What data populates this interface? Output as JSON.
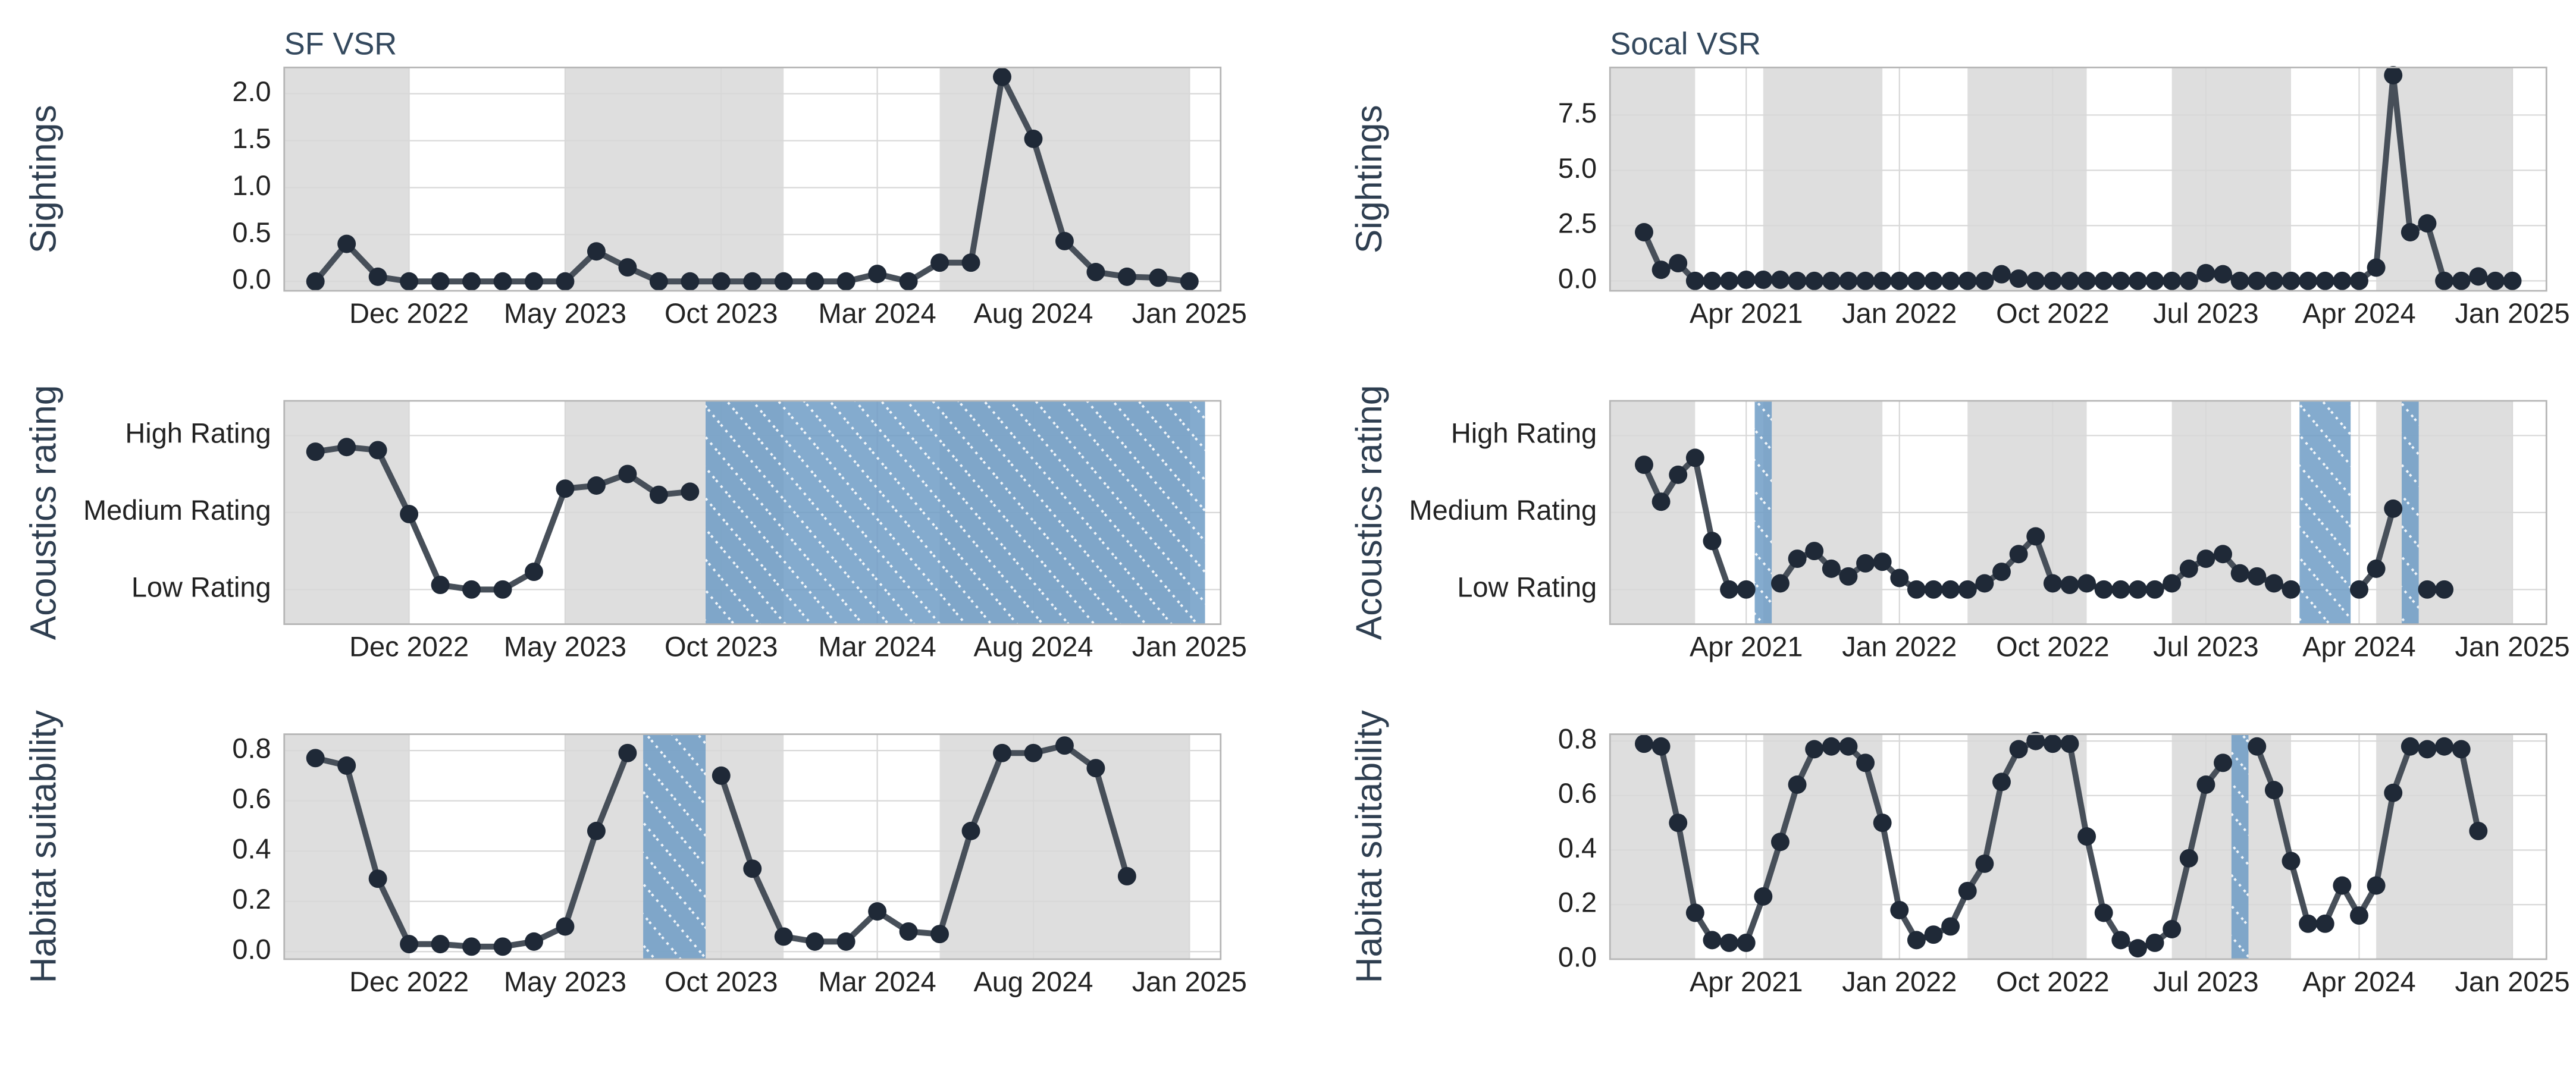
{
  "chart_data": [
    {
      "type": "line",
      "title": "SF VSR",
      "ylabel": "Sightings",
      "x": [
        "2022-09",
        "2022-10",
        "2022-11",
        "2022-12",
        "2023-01",
        "2023-02",
        "2023-03",
        "2023-04",
        "2023-05",
        "2023-06",
        "2023-07",
        "2023-08",
        "2023-09",
        "2023-10",
        "2023-11",
        "2023-12",
        "2024-01",
        "2024-02",
        "2024-03",
        "2024-04",
        "2024-05",
        "2024-06",
        "2024-07",
        "2024-08",
        "2024-09",
        "2024-10",
        "2024-11",
        "2024-12",
        "2025-01"
      ],
      "values": [
        0,
        0.4,
        0.05,
        0,
        0,
        0,
        0,
        0,
        0,
        0.32,
        0.15,
        0,
        0,
        0,
        0,
        0,
        0,
        0,
        0.08,
        0,
        0.2,
        0.2,
        2.18,
        1.52,
        0.43,
        0.1,
        0.05,
        0.04,
        0
      ],
      "color": "#474f59",
      "marker_color": "#1f2937",
      "xlim": [
        "2022-08",
        "2025-02"
      ],
      "xticks": [
        {
          "value": "2022-12",
          "label": "Dec 2022"
        },
        {
          "value": "2023-05",
          "label": "May 2023"
        },
        {
          "value": "2023-10",
          "label": "Oct 2023"
        },
        {
          "value": "2024-03",
          "label": "Mar 2024"
        },
        {
          "value": "2024-08",
          "label": "Aug 2024"
        },
        {
          "value": "2025-01",
          "label": "Jan 2025"
        }
      ],
      "ylim": [
        -0.1,
        2.28
      ],
      "yticks": [
        {
          "value": 0,
          "label": "0.0"
        },
        0.5,
        {
          "value": 1,
          "label": "1.0"
        },
        1.5,
        {
          "value": 2,
          "label": "2.0"
        }
      ],
      "grid": true,
      "shaded_periods": [
        [
          "2022-08",
          "2022-12"
        ],
        [
          "2023-05",
          "2023-12"
        ],
        [
          "2024-05",
          "2025-01"
        ]
      ],
      "shaded_color": "#dedede",
      "missing_periods": [],
      "missing_color": "#6f9cc6"
    },
    {
      "type": "line",
      "ylabel": "Acoustics rating",
      "x": [
        "2022-09",
        "2022-10",
        "2022-11",
        "2022-12",
        "2023-01",
        "2023-02",
        "2023-03",
        "2023-04",
        "2023-05",
        "2023-06",
        "2023-07",
        "2023-08",
        "2023-09"
      ],
      "values": [
        2.79,
        2.85,
        2.81,
        1.98,
        1.06,
        1.0,
        1.0,
        1.23,
        2.31,
        2.35,
        2.5,
        2.23,
        2.27
      ],
      "color": "#474f59",
      "marker_color": "#1f2937",
      "xlim": [
        "2022-08",
        "2025-02"
      ],
      "xticks": [
        {
          "value": "2022-12",
          "label": "Dec 2022"
        },
        {
          "value": "2023-05",
          "label": "May 2023"
        },
        {
          "value": "2023-10",
          "label": "Oct 2023"
        },
        {
          "value": "2024-03",
          "label": "Mar 2024"
        },
        {
          "value": "2024-08",
          "label": "Aug 2024"
        },
        {
          "value": "2025-01",
          "label": "Jan 2025"
        }
      ],
      "ylim": [
        0.55,
        3.45
      ],
      "yticks": [
        {
          "value": 1,
          "label": "Low Rating"
        },
        {
          "value": 2,
          "label": "Medium Rating"
        },
        {
          "value": 3,
          "label": "High Rating"
        }
      ],
      "grid": true,
      "shaded_periods": [
        [
          "2022-08",
          "2022-12"
        ],
        [
          "2023-05",
          "2023-12"
        ],
        [
          "2024-05",
          "2025-01"
        ]
      ],
      "shaded_color": "#dedede",
      "missing_periods": [
        [
          "2023-10",
          "2025-01"
        ]
      ],
      "missing_color": "#6f9cc6"
    },
    {
      "type": "line",
      "ylabel": "Habitat suitability",
      "x": [
        "2022-09",
        "2022-10",
        "2022-11",
        "2022-12",
        "2023-01",
        "2023-02",
        "2023-03",
        "2023-04",
        "2023-05",
        "2023-06",
        "2023-07",
        "2023-08",
        "2023-09",
        "2023-10",
        "2023-11",
        "2023-12",
        "2024-01",
        "2024-02",
        "2024-03",
        "2024-04",
        "2024-05",
        "2024-06",
        "2024-07",
        "2024-08",
        "2024-09",
        "2024-10",
        "2024-11"
      ],
      "values": [
        0.77,
        0.74,
        0.29,
        0.03,
        0.03,
        0.02,
        0.02,
        0.04,
        0.1,
        0.48,
        0.79,
        null,
        null,
        0.7,
        0.33,
        0.06,
        0.04,
        0.04,
        0.16,
        0.08,
        0.07,
        0.48,
        0.79,
        0.79,
        0.82,
        0.73,
        0.3
      ],
      "color": "#474f59",
      "marker_color": "#1f2937",
      "xlim": [
        "2022-08",
        "2025-02"
      ],
      "xticks": [
        {
          "value": "2022-12",
          "label": "Dec 2022"
        },
        {
          "value": "2023-05",
          "label": "May 2023"
        },
        {
          "value": "2023-10",
          "label": "Oct 2023"
        },
        {
          "value": "2024-03",
          "label": "Mar 2024"
        },
        {
          "value": "2024-08",
          "label": "Aug 2024"
        },
        {
          "value": "2025-01",
          "label": "Jan 2025"
        }
      ],
      "ylim": [
        -0.03,
        0.865
      ],
      "yticks": [
        {
          "value": 0,
          "label": "0.0"
        },
        0.2,
        0.4,
        0.6,
        0.8
      ],
      "grid": true,
      "shaded_periods": [
        [
          "2022-08",
          "2022-12"
        ],
        [
          "2023-05",
          "2023-12"
        ],
        [
          "2024-05",
          "2025-01"
        ]
      ],
      "shaded_color": "#dedede",
      "missing_periods": [
        [
          "2023-08",
          "2023-09"
        ]
      ],
      "missing_color": "#6f9cc6"
    },
    {
      "type": "line",
      "title": "Socal VSR",
      "ylabel": "Sightings",
      "x": [
        "2020-10",
        "2020-11",
        "2020-12",
        "2021-01",
        "2021-02",
        "2021-03",
        "2021-04",
        "2021-05",
        "2021-06",
        "2021-07",
        "2021-08",
        "2021-09",
        "2021-10",
        "2021-11",
        "2021-12",
        "2022-01",
        "2022-02",
        "2022-03",
        "2022-04",
        "2022-05",
        "2022-06",
        "2022-07",
        "2022-08",
        "2022-09",
        "2022-10",
        "2022-11",
        "2022-12",
        "2023-01",
        "2023-02",
        "2023-03",
        "2023-04",
        "2023-05",
        "2023-06",
        "2023-07",
        "2023-08",
        "2023-09",
        "2023-10",
        "2023-11",
        "2023-12",
        "2024-01",
        "2024-02",
        "2024-03",
        "2024-04",
        "2024-05",
        "2024-06",
        "2024-07",
        "2024-08",
        "2024-09",
        "2024-10",
        "2024-11",
        "2024-12",
        "2025-01"
      ],
      "values": [
        2.2,
        0.5,
        0.8,
        0,
        0,
        0,
        0.05,
        0.05,
        0.05,
        0,
        0,
        0,
        0,
        0,
        0,
        0,
        0,
        0,
        0,
        0,
        0,
        0.3,
        0.1,
        0,
        0,
        0,
        0,
        0,
        0,
        0,
        0,
        0,
        0,
        0.35,
        0.3,
        0,
        0,
        0,
        0,
        0,
        0,
        0,
        0,
        0.6,
        9.3,
        2.2,
        2.6,
        0,
        0,
        0.2,
        0,
        0
      ],
      "color": "#474f59",
      "marker_color": "#1f2937",
      "xlim": [
        "2020-08",
        "2025-03"
      ],
      "xticks": [
        {
          "value": "2021-04",
          "label": "Apr 2021"
        },
        {
          "value": "2022-01",
          "label": "Jan 2022"
        },
        {
          "value": "2022-10",
          "label": "Oct 2022"
        },
        {
          "value": "2023-07",
          "label": "Jul 2023"
        },
        {
          "value": "2024-04",
          "label": "Apr 2024"
        },
        {
          "value": "2025-01",
          "label": "Jan 2025"
        }
      ],
      "ylim": [
        -0.45,
        9.65
      ],
      "yticks": [
        {
          "value": 0,
          "label": "0.0"
        },
        2.5,
        {
          "value": 5,
          "label": "5.0"
        },
        7.5
      ],
      "grid": true,
      "shaded_periods": [
        [
          "2020-08",
          "2021-01"
        ],
        [
          "2021-05",
          "2021-12"
        ],
        [
          "2022-05",
          "2022-12"
        ],
        [
          "2023-05",
          "2023-12"
        ],
        [
          "2024-05",
          "2025-01"
        ]
      ],
      "shaded_color": "#dedede",
      "missing_periods": [],
      "missing_color": "#6f9cc6"
    },
    {
      "type": "line",
      "ylabel": "Acoustics rating",
      "x": [
        "2020-10",
        "2020-11",
        "2020-12",
        "2021-01",
        "2021-02",
        "2021-03",
        "2021-04",
        "2021-05",
        "2021-06",
        "2021-07",
        "2021-08",
        "2021-09",
        "2021-10",
        "2021-11",
        "2021-12",
        "2022-01",
        "2022-02",
        "2022-03",
        "2022-04",
        "2022-05",
        "2022-06",
        "2022-07",
        "2022-08",
        "2022-09",
        "2022-10",
        "2022-11",
        "2022-12",
        "2023-01",
        "2023-02",
        "2023-03",
        "2023-04",
        "2023-05",
        "2023-06",
        "2023-07",
        "2023-08",
        "2023-09",
        "2023-10",
        "2023-11",
        "2023-12",
        "2024-01",
        "2024-02",
        "2024-03",
        "2024-04",
        "2024-05",
        "2024-06",
        "2024-07",
        "2024-08",
        "2024-09"
      ],
      "values": [
        2.62,
        2.14,
        2.49,
        2.71,
        1.63,
        1.0,
        1.0,
        null,
        1.08,
        1.4,
        1.5,
        1.27,
        1.17,
        1.34,
        1.36,
        1.15,
        1.0,
        1.0,
        1.0,
        1.0,
        1.08,
        1.23,
        1.46,
        1.69,
        1.08,
        1.06,
        1.08,
        1.0,
        1.0,
        1.0,
        1.0,
        1.08,
        1.27,
        1.4,
        1.46,
        1.21,
        1.17,
        1.08,
        1.0,
        null,
        null,
        null,
        1.0,
        1.27,
        2.05,
        null,
        1.0,
        1.0
      ],
      "color": "#474f59",
      "marker_color": "#1f2937",
      "xlim": [
        "2020-08",
        "2025-03"
      ],
      "xticks": [
        {
          "value": "2021-04",
          "label": "Apr 2021"
        },
        {
          "value": "2022-01",
          "label": "Jan 2022"
        },
        {
          "value": "2022-10",
          "label": "Oct 2022"
        },
        {
          "value": "2023-07",
          "label": "Jul 2023"
        },
        {
          "value": "2024-04",
          "label": "Apr 2024"
        },
        {
          "value": "2025-01",
          "label": "Jan 2025"
        }
      ],
      "ylim": [
        0.55,
        3.45
      ],
      "yticks": [
        {
          "value": 1,
          "label": "Low Rating"
        },
        {
          "value": 2,
          "label": "Medium Rating"
        },
        {
          "value": 3,
          "label": "High Rating"
        }
      ],
      "grid": true,
      "shaded_periods": [
        [
          "2020-08",
          "2021-01"
        ],
        [
          "2021-05",
          "2021-12"
        ],
        [
          "2022-05",
          "2022-12"
        ],
        [
          "2023-05",
          "2023-12"
        ],
        [
          "2024-05",
          "2025-01"
        ]
      ],
      "shaded_color": "#dedede",
      "missing_periods": [
        [
          "2021-05",
          "2021-05"
        ],
        [
          "2024-01",
          "2024-03"
        ],
        [
          "2024-07",
          "2024-07"
        ]
      ],
      "missing_color": "#6f9cc6"
    },
    {
      "type": "line",
      "ylabel": "Habitat suitability",
      "x": [
        "2020-10",
        "2020-11",
        "2020-12",
        "2021-01",
        "2021-02",
        "2021-03",
        "2021-04",
        "2021-05",
        "2021-06",
        "2021-07",
        "2021-08",
        "2021-09",
        "2021-10",
        "2021-11",
        "2021-12",
        "2022-01",
        "2022-02",
        "2022-03",
        "2022-04",
        "2022-05",
        "2022-06",
        "2022-07",
        "2022-08",
        "2022-09",
        "2022-10",
        "2022-11",
        "2022-12",
        "2023-01",
        "2023-02",
        "2023-03",
        "2023-04",
        "2023-05",
        "2023-06",
        "2023-07",
        "2023-08",
        "2023-09",
        "2023-10",
        "2023-11",
        "2023-12",
        "2024-01",
        "2024-02",
        "2024-03",
        "2024-04",
        "2024-05",
        "2024-06",
        "2024-07",
        "2024-08",
        "2024-09",
        "2024-10",
        "2024-11"
      ],
      "values": [
        0.79,
        0.78,
        0.5,
        0.17,
        0.07,
        0.06,
        0.06,
        0.23,
        0.43,
        0.64,
        0.77,
        0.78,
        0.78,
        0.72,
        0.5,
        0.18,
        0.07,
        0.09,
        0.12,
        0.25,
        0.35,
        0.65,
        0.77,
        0.8,
        0.79,
        0.79,
        0.45,
        0.17,
        0.07,
        0.04,
        0.06,
        0.11,
        0.37,
        0.64,
        0.72,
        null,
        0.78,
        0.62,
        0.36,
        0.13,
        0.13,
        0.27,
        0.16,
        0.27,
        0.61,
        0.78,
        0.77,
        0.78,
        0.77,
        0.47
      ],
      "color": "#474f59",
      "marker_color": "#1f2937",
      "xlim": [
        "2020-08",
        "2025-03"
      ],
      "xticks": [
        {
          "value": "2021-04",
          "label": "Apr 2021"
        },
        {
          "value": "2022-01",
          "label": "Jan 2022"
        },
        {
          "value": "2022-10",
          "label": "Oct 2022"
        },
        {
          "value": "2023-07",
          "label": "Jul 2023"
        },
        {
          "value": "2024-04",
          "label": "Apr 2024"
        },
        {
          "value": "2025-01",
          "label": "Jan 2025"
        }
      ],
      "ylim": [
        0,
        0.825
      ],
      "yticks": [
        {
          "value": 0,
          "label": "0.0"
        },
        0.2,
        0.4,
        0.6,
        0.8
      ],
      "grid": true,
      "shaded_periods": [
        [
          "2020-08",
          "2021-01"
        ],
        [
          "2021-05",
          "2021-12"
        ],
        [
          "2022-05",
          "2022-12"
        ],
        [
          "2023-05",
          "2023-12"
        ],
        [
          "2024-05",
          "2025-01"
        ]
      ],
      "shaded_color": "#dedede",
      "missing_periods": [
        [
          "2023-09",
          "2023-09"
        ]
      ],
      "missing_color": "#6f9cc6"
    }
  ]
}
